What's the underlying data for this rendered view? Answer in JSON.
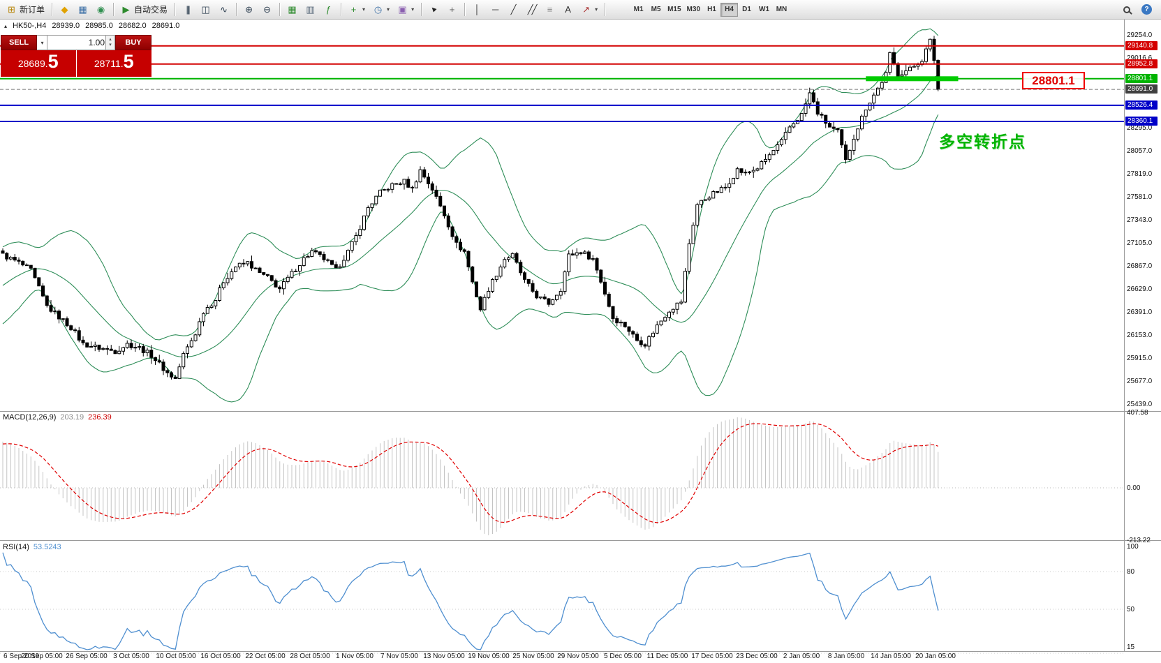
{
  "toolbar": {
    "new_order_label": "新订单",
    "autotrading_label": "自动交易",
    "timeframes": {
      "items": [
        "M1",
        "M5",
        "M15",
        "M30",
        "H1",
        "H4",
        "D1",
        "W1",
        "MN"
      ],
      "active": "H4"
    }
  },
  "chart": {
    "collapse_glyph": "▴",
    "symbol_header": "HK50-,H4",
    "ohlc": {
      "open": "28939.0",
      "high": "28985.0",
      "low": "28682.0",
      "close": "28691.0"
    },
    "trade_panel": {
      "sell_label": "SELL",
      "buy_label": "BUY",
      "volume": "1.00",
      "sell_price_main": "28689.",
      "sell_price_big": "5",
      "buy_price_main": "28711.",
      "buy_price_big": "5"
    },
    "annotations": {
      "price_box": "28801.1",
      "turning_point": "多空转折点"
    },
    "price_axis": {
      "regular": [
        {
          "text": "29254.0",
          "price": 29254.0
        },
        {
          "text": "29016.6",
          "price": 29016.6
        },
        {
          "text": "28295.0",
          "price": 28295.0
        },
        {
          "text": "28057.0",
          "price": 28057.0
        },
        {
          "text": "27819.0",
          "price": 27819.0
        },
        {
          "text": "27581.0",
          "price": 27581.0
        },
        {
          "text": "27343.0",
          "price": 27343.0
        },
        {
          "text": "27105.0",
          "price": 27105.0
        },
        {
          "text": "26867.0",
          "price": 26867.0
        },
        {
          "text": "26629.0",
          "price": 26629.0
        },
        {
          "text": "26391.0",
          "price": 26391.0
        },
        {
          "text": "26153.0",
          "price": 26153.0
        },
        {
          "text": "25915.0",
          "price": 25915.0
        },
        {
          "text": "25677.0",
          "price": 25677.0
        },
        {
          "text": "25439.0",
          "price": 25439.0
        }
      ],
      "highlighted": [
        {
          "text": "29140.8",
          "price": 29140.8,
          "bg": "#d40000"
        },
        {
          "text": "28952.8",
          "price": 28952.8,
          "bg": "#d40000"
        },
        {
          "text": "28801.1",
          "price": 28801.1,
          "bg": "#00b400"
        },
        {
          "text": "28691.0",
          "price": 28691.0,
          "bg": "#404040"
        },
        {
          "text": "28526.4",
          "price": 28526.4,
          "bg": "#0000c8"
        },
        {
          "text": "28360.1",
          "price": 28360.1,
          "bg": "#0000c8"
        }
      ]
    }
  },
  "indicators": {
    "macd": {
      "label": "MACD(12,26,9)",
      "value1": "203.19",
      "value2": "236.39",
      "axis": [
        {
          "text": "407.58",
          "value": 407.58
        },
        {
          "text": "0.00",
          "value": 0
        },
        {
          "text": "-213.22",
          "value": -213.22
        }
      ]
    },
    "rsi": {
      "label": "RSI(14)",
      "value": "53.5243",
      "axis": [
        {
          "text": "100",
          "value": 100
        },
        {
          "text": "80",
          "value": 80
        },
        {
          "text": "50",
          "value": 50
        },
        {
          "text": "15",
          "value": 15
        }
      ]
    }
  },
  "time_axis": [
    "6 Sep 2019",
    "20 Sep 05:00",
    "26 Sep 05:00",
    "3 Oct 05:00",
    "10 Oct 05:00",
    "16 Oct 05:00",
    "22 Oct 05:00",
    "28 Oct 05:00",
    "1 Nov 05:00",
    "7 Nov 05:00",
    "13 Nov 05:00",
    "19 Nov 05:00",
    "25 Nov 05:00",
    "29 Nov 05:00",
    "5 Dec 05:00",
    "11 Dec 05:00",
    "17 Dec 05:00",
    "23 Dec 05:00",
    "2 Jan 05:00",
    "8 Jan 05:00",
    "14 Jan 05:00",
    "20 Jan 05:00"
  ],
  "icons": {
    "new-order-icon": {
      "glyph": "⊞",
      "color": "#b8860b"
    },
    "expert-icon": {
      "glyph": "◆",
      "color": "#e0a200"
    },
    "data-window-icon": {
      "glyph": "▦",
      "color": "#3a6ea5"
    },
    "navigator-icon": {
      "glyph": "◉",
      "color": "#2f8f4f"
    },
    "autotrading-icon": {
      "glyph": "▶",
      "color": "#2e8b2e"
    },
    "bars-chart-icon": {
      "glyph": "|||",
      "color": "#334455"
    },
    "candle-chart-icon": {
      "glyph": "◫",
      "color": "#334455"
    },
    "line-chart-icon": {
      "glyph": "∿",
      "color": "#334455"
    },
    "zoom-in-icon": {
      "glyph": "⊕",
      "color": "#334455"
    },
    "zoom-out-icon": {
      "glyph": "⊖",
      "color": "#334455"
    },
    "grid-icon": {
      "glyph": "▦",
      "color": "#2e8b2e"
    },
    "tile-windows-icon": {
      "glyph": "▥",
      "color": "#556677"
    },
    "indicators-icon": {
      "glyph": "ƒ",
      "color": "#2e8b2e"
    },
    "add-indicator-icon": {
      "glyph": "+",
      "color": "#2e8b2e"
    },
    "periods-icon": {
      "glyph": "◷",
      "color": "#3a6ea5"
    },
    "template-icon": {
      "glyph": "▣",
      "color": "#8a5fb0"
    },
    "cursor-icon": {
      "glyph": "▲",
      "color": "#222222"
    },
    "crosshair-icon": {
      "glyph": "+",
      "color": "#555555"
    },
    "vline-icon": {
      "glyph": "│",
      "color": "#333333"
    },
    "hline-icon": {
      "glyph": "─",
      "color": "#333333"
    },
    "trendline-icon": {
      "glyph": "╱",
      "color": "#333333"
    },
    "channel-icon": {
      "glyph": "╱╱",
      "color": "#333333"
    },
    "fibonacci-icon": {
      "glyph": "≡",
      "color": "#888888"
    },
    "text-icon": {
      "glyph": "A",
      "color": "#333333"
    },
    "arrows-icon": {
      "glyph": "↗",
      "color": "#aa3333"
    },
    "dropdown-caret": {
      "gl yph_unused": "",
      "glyph": "▾",
      "color": "#444444"
    },
    "spinner-up": {
      "glyph": "▴",
      "color": "#555555"
    },
    "spinner-down": {
      "glyph": "▾",
      "color": "#555555"
    },
    "search-icon": {
      "glyph": "",
      "color": "#444444"
    },
    "help-icon": {
      "glyph": "?",
      "color": "#ffffff"
    }
  },
  "chart_data": {
    "type": "candlestick",
    "symbol": "HK50-",
    "timeframe": "H4",
    "title": "HK50-,H4",
    "last_ohlc": {
      "open": 28939.0,
      "high": 28985.0,
      "low": 28682.0,
      "close": 28691.0
    },
    "y_axis_range": [
      25432.0,
      29254.0
    ],
    "candle_count": 234,
    "price_keypoints": [
      [
        0,
        26980
      ],
      [
        4,
        26900
      ],
      [
        7,
        26820
      ],
      [
        11,
        26450
      ],
      [
        14,
        26340
      ],
      [
        17,
        26230
      ],
      [
        20,
        26060
      ],
      [
        24,
        26020
      ],
      [
        28,
        25985
      ],
      [
        31,
        26060
      ],
      [
        34,
        26020
      ],
      [
        37,
        25945
      ],
      [
        41,
        25760
      ],
      [
        43,
        25700
      ],
      [
        45,
        25950
      ],
      [
        48,
        26170
      ],
      [
        50,
        26400
      ],
      [
        53,
        26520
      ],
      [
        55,
        26710
      ],
      [
        58,
        26860
      ],
      [
        61,
        26900
      ],
      [
        64,
        26790
      ],
      [
        66,
        26745
      ],
      [
        69,
        26630
      ],
      [
        72,
        26790
      ],
      [
        75,
        26940
      ],
      [
        77,
        27015
      ],
      [
        80,
        26940
      ],
      [
        83,
        26820
      ],
      [
        86,
        27015
      ],
      [
        88,
        27170
      ],
      [
        91,
        27470
      ],
      [
        94,
        27625
      ],
      [
        97,
        27700
      ],
      [
        100,
        27740
      ],
      [
        102,
        27660
      ],
      [
        104,
        27855
      ],
      [
        107,
        27660
      ],
      [
        110,
        27395
      ],
      [
        113,
        27090
      ],
      [
        115,
        27015
      ],
      [
        117,
        26700
      ],
      [
        119,
        26420
      ],
      [
        121,
        26630
      ],
      [
        125,
        26940
      ],
      [
        127,
        26975
      ],
      [
        130,
        26710
      ],
      [
        133,
        26555
      ],
      [
        136,
        26480
      ],
      [
        139,
        26630
      ],
      [
        141,
        26975
      ],
      [
        144,
        27015
      ],
      [
        147,
        26940
      ],
      [
        149,
        26710
      ],
      [
        152,
        26330
      ],
      [
        155,
        26250
      ],
      [
        158,
        26100
      ],
      [
        160,
        26060
      ],
      [
        163,
        26250
      ],
      [
        166,
        26410
      ],
      [
        169,
        26500
      ],
      [
        171,
        27100
      ],
      [
        173,
        27500
      ],
      [
        176,
        27590
      ],
      [
        180,
        27680
      ],
      [
        183,
        27860
      ],
      [
        185,
        27820
      ],
      [
        188,
        27880
      ],
      [
        191,
        28010
      ],
      [
        194,
        28150
      ],
      [
        196,
        28300
      ],
      [
        199,
        28430
      ],
      [
        201,
        28650
      ],
      [
        203,
        28450
      ],
      [
        206,
        28300
      ],
      [
        208,
        28250
      ],
      [
        210,
        27950
      ],
      [
        212,
        28200
      ],
      [
        215,
        28500
      ],
      [
        218,
        28700
      ],
      [
        220,
        28850
      ],
      [
        221,
        29050
      ],
      [
        223,
        28850
      ],
      [
        226,
        28900
      ],
      [
        229,
        29000
      ],
      [
        231,
        29190
      ],
      [
        232,
        29000
      ],
      [
        233,
        28691
      ]
    ],
    "overlays": {
      "bollinger": {
        "period": 20,
        "deviation": 2,
        "color": "#2f8e59"
      }
    },
    "levels": [
      {
        "price": 29140.8,
        "color": "#d40000",
        "style": "solid",
        "width": 2,
        "label": "29140.8"
      },
      {
        "price": 28952.8,
        "color": "#d40000",
        "style": "solid",
        "width": 2,
        "label": "28952.8"
      },
      {
        "price": 28801.1,
        "color": "#00b400",
        "style": "solid",
        "width": 2,
        "label": "28801.1"
      },
      {
        "price": 28691.0,
        "color": "#777777",
        "style": "dash",
        "width": 1,
        "label": "28691.0"
      },
      {
        "price": 28526.4,
        "color": "#0000c8",
        "style": "solid",
        "width": 2,
        "label": "28526.4"
      },
      {
        "price": 28360.1,
        "color": "#0000c8",
        "style": "solid",
        "width": 2,
        "label": "28360.1"
      }
    ],
    "highlight_zone": {
      "price": 28801.1,
      "from_index": 215,
      "to_index": 238,
      "color": "#00cc00"
    },
    "sub_indicators": [
      {
        "name": "MACD",
        "params": [
          12,
          26,
          9
        ],
        "current": [
          203.19,
          236.39
        ],
        "axis_values": [
          407.58,
          0.0,
          -213.22
        ]
      },
      {
        "name": "RSI",
        "params": [
          14
        ],
        "current": 53.5243,
        "axis_values": [
          100,
          80,
          50,
          15
        ]
      }
    ]
  }
}
